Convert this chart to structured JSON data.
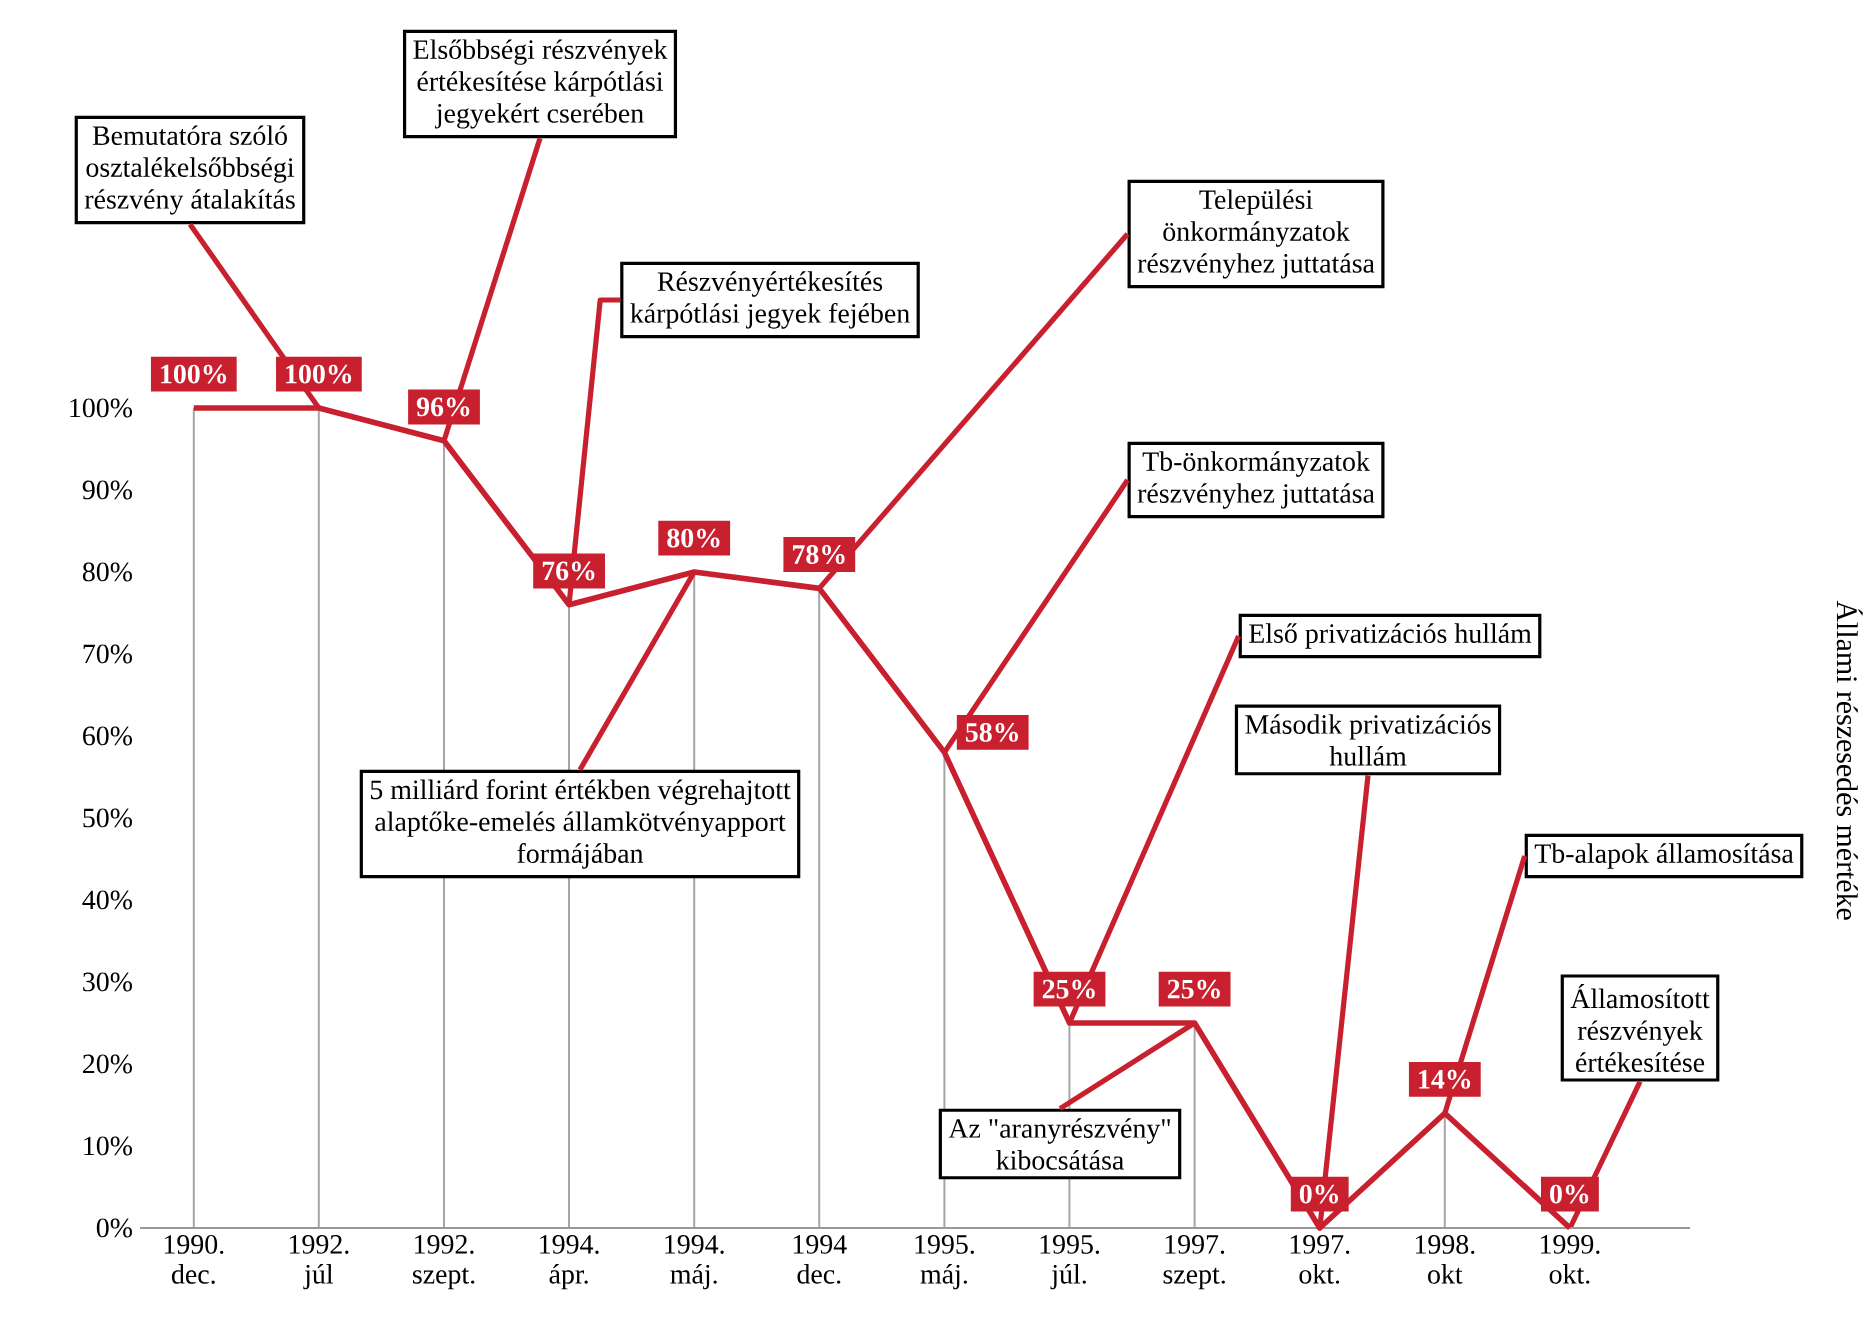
{
  "chart_data": {
    "type": "line",
    "ylabel": "Állami részesedés mértéke",
    "categories": [
      "1990. dec.",
      "1992. júl",
      "1992. szept.",
      "1994. ápr.",
      "1994. máj.",
      "1994 dec.",
      "1995. máj.",
      "1995. júl.",
      "1997. szept.",
      "1997. okt.",
      "1998. okt",
      "1999. okt."
    ],
    "series": [
      {
        "color": "#c8202f",
        "values": [
          100,
          100,
          96,
          76,
          80,
          78,
          58,
          25,
          25,
          0,
          14,
          0
        ],
        "value_labels": [
          "100%",
          "100%",
          "96%",
          "76%",
          "80%",
          "78%",
          "58%",
          "25%",
          "25%",
          "0%",
          "14%",
          "0%"
        ]
      }
    ],
    "ylim": [
      0,
      100
    ],
    "yticks": [
      {
        "value": 0,
        "label": "0%"
      },
      {
        "value": 10,
        "label": "10%"
      },
      {
        "value": 20,
        "label": "20%"
      },
      {
        "value": 30,
        "label": "30%"
      },
      {
        "value": 40,
        "label": "40%"
      },
      {
        "value": 50,
        "label": "50%"
      },
      {
        "value": 60,
        "label": "60%"
      },
      {
        "value": 70,
        "label": "70%"
      },
      {
        "value": 80,
        "label": "80%"
      },
      {
        "value": 90,
        "label": "90%"
      },
      {
        "value": 100,
        "label": "100%"
      }
    ],
    "marker": "none",
    "line_style": "solid",
    "grid": "x",
    "annotations": [
      {
        "text": "Bemutatóra szóló osztalékelsőbbségi részvény átalakítás",
        "x": "1992. júl",
        "y": 100
      },
      {
        "text": "Elsőbbségi részvények értékesítése kárpótlási jegyekért cserében",
        "x": "1992. szept.",
        "y": 96
      },
      {
        "text": "Részvényértékesítés kárpótlási jegyek fejében",
        "x": "1994. ápr.",
        "y": 76
      },
      {
        "text": "5 milliárd forint értékben végrehajtott alaptőke-emelés államkötvényapport formájában",
        "x": "1994. máj.",
        "y": 80
      },
      {
        "text": "Települési önkormányzatok részvényhez juttatása",
        "x": "1994 dec.",
        "y": 78
      },
      {
        "text": "Tb-önkormányzatok részvényhez juttatása",
        "x": "1995. máj.",
        "y": 58
      },
      {
        "text": "Első privatizációs hullám",
        "x": "1995. júl.",
        "y": 25
      },
      {
        "text": "Az \"aranyrészvény\" kibocsátása",
        "x": "1997. szept.",
        "y": 25
      },
      {
        "text": "Második privatizációs hullám",
        "x": "1997. okt.",
        "y": 0
      },
      {
        "text": "Tb-alapok államosítása",
        "x": "1998. okt",
        "y": 14
      },
      {
        "text": "Államosított részvények értékesítése",
        "x": "1999. okt.",
        "y": 0
      }
    ]
  }
}
